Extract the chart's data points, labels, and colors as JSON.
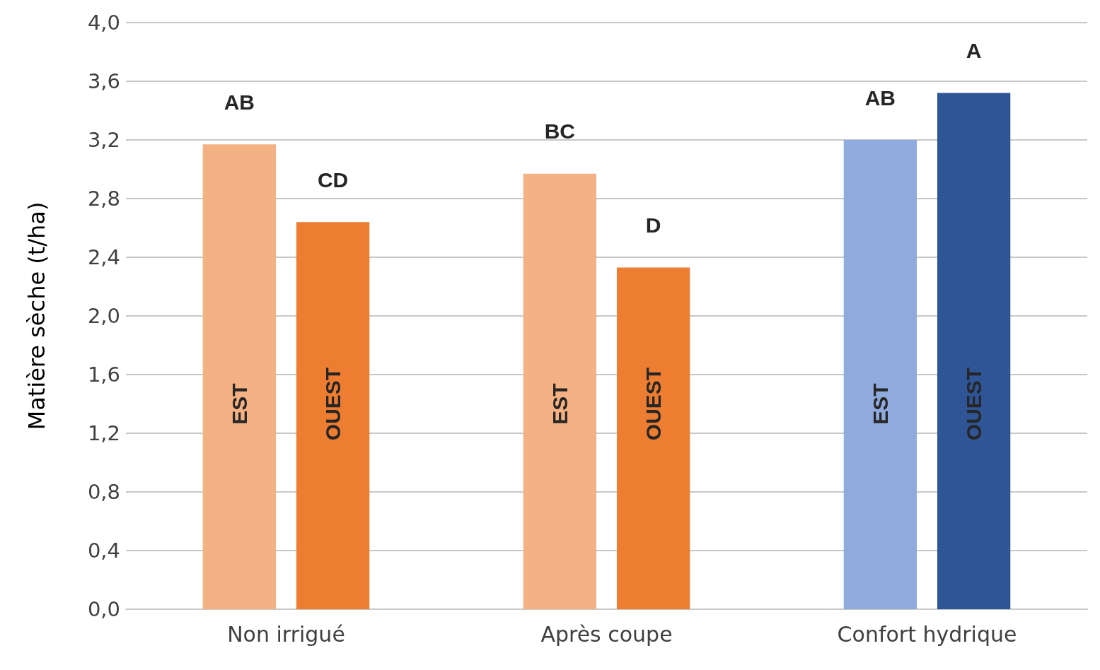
{
  "chart_data": {
    "type": "bar",
    "ylabel": "Matière sèche (t/ha)",
    "categories": [
      "Non irrigué",
      "Après coupe",
      "Confort hydrique"
    ],
    "series": [
      {
        "name": "EST",
        "values": [
          3.17,
          2.97,
          3.2
        ],
        "colors": [
          "#f4b183",
          "#f4b183",
          "#8faadc"
        ],
        "value_labels": [
          "AB",
          "BC",
          "AB"
        ]
      },
      {
        "name": "OUEST",
        "values": [
          2.64,
          2.33,
          3.52
        ],
        "colors": [
          "#ed7d31",
          "#ed7d31",
          "#2f5597"
        ],
        "value_labels": [
          "CD",
          "D",
          "A"
        ]
      }
    ],
    "ylim": [
      0,
      4
    ],
    "yticks": [
      {
        "value": 0,
        "label": "0,0"
      },
      {
        "value": 0.4,
        "label": "0,4"
      },
      {
        "value": 0.8,
        "label": "0,8"
      },
      {
        "value": 1.2,
        "label": "1,2"
      },
      {
        "value": 1.6,
        "label": "1,6"
      },
      {
        "value": 2,
        "label": "2,0"
      },
      {
        "value": 2.4,
        "label": "2,4"
      },
      {
        "value": 2.8,
        "label": "2,8"
      },
      {
        "value": 3.2,
        "label": "3,2"
      },
      {
        "value": 3.6,
        "label": "3,6"
      },
      {
        "value": 4,
        "label": "4,0"
      }
    ],
    "grid": "y",
    "legend": false
  }
}
